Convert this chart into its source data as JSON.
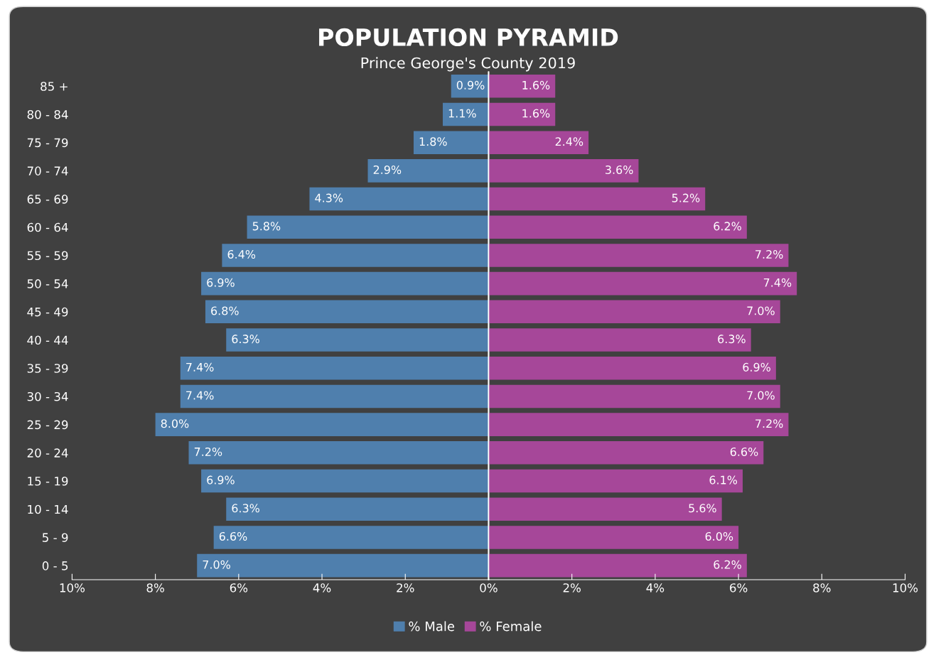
{
  "chart_data": [
    {
      "type": "bar",
      "orientation": "horizontal",
      "title": "POPULATION PYRAMID",
      "subtitle": "Prince George's County 2019",
      "categories": [
        "85 +",
        "80 - 84",
        "75 - 79",
        "70 - 74",
        "65 - 69",
        "60 - 64",
        "55 - 59",
        "50 - 54",
        "45 - 49",
        "40 - 44",
        "35 - 39",
        "30 - 34",
        "25 - 29",
        "20 - 24",
        "15 - 19",
        "10 - 14",
        "5 - 9",
        "0 - 5"
      ],
      "series": [
        {
          "name": "% Male",
          "color": "#4f7fad",
          "values": [
            0.9,
            1.1,
            1.8,
            2.9,
            4.3,
            5.8,
            6.4,
            6.9,
            6.8,
            6.3,
            7.4,
            7.4,
            8.0,
            7.2,
            6.9,
            6.3,
            6.6,
            7.0
          ],
          "value_labels": [
            "0.9%",
            "1.1%",
            "1.8%",
            "2.9%",
            "4.3%",
            "5.8%",
            "6.4%",
            "6.9%",
            "6.8%",
            "6.3%",
            "7.4%",
            "7.4%",
            "8.0%",
            "7.2%",
            "6.9%",
            "6.3%",
            "6.6%",
            "7.0%"
          ]
        }
      ],
      "xlim": [
        10,
        0
      ],
      "xticks": [
        {
          "value": 10,
          "label": "10%"
        },
        {
          "value": 8,
          "label": "8%"
        },
        {
          "value": 6,
          "label": "6%"
        },
        {
          "value": 4,
          "label": "4%"
        },
        {
          "value": 2,
          "label": "2%"
        },
        {
          "value": 0,
          "label": null
        }
      ],
      "grid": false,
      "legend": "bottom"
    },
    {
      "type": "bar",
      "orientation": "horizontal",
      "series": [
        {
          "name": "% Female",
          "color": "#a64799",
          "values": [
            1.6,
            1.6,
            2.4,
            3.6,
            5.2,
            6.2,
            7.2,
            7.4,
            7.0,
            6.3,
            6.9,
            7.0,
            7.2,
            6.6,
            6.1,
            5.6,
            6.0,
            6.2
          ],
          "value_labels": [
            "1.6%",
            "1.6%",
            "2.4%",
            "3.6%",
            "5.2%",
            "6.2%",
            "7.2%",
            "7.4%",
            "7.0%",
            "6.3%",
            "6.9%",
            "7.0%",
            "7.2%",
            "6.6%",
            "6.1%",
            "5.6%",
            "6.0%",
            "6.2%"
          ]
        }
      ],
      "xlim": [
        0,
        10
      ],
      "xticks": [
        {
          "value": 0,
          "label": "0%"
        },
        {
          "value": 2,
          "label": "2%"
        },
        {
          "value": 4,
          "label": "4%"
        },
        {
          "value": 6,
          "label": "6%"
        },
        {
          "value": 8,
          "label": "8%"
        },
        {
          "value": 10,
          "label": "10%"
        }
      ],
      "tick_labels": "x",
      "grid": false,
      "legend": "bottom"
    }
  ]
}
